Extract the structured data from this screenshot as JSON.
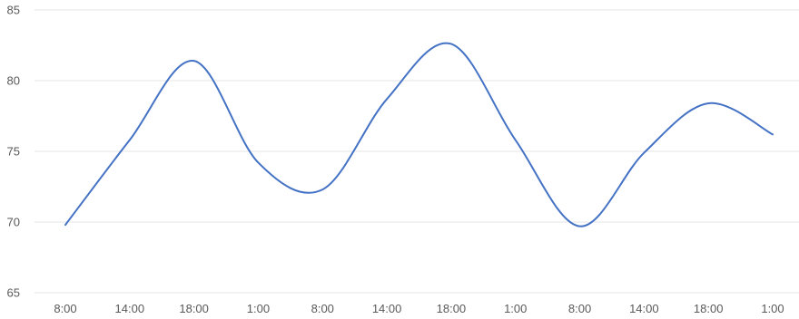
{
  "chart_data": {
    "type": "line",
    "title": "",
    "xlabel": "",
    "ylabel": "",
    "categories": [
      "8:00",
      "14:00",
      "18:00",
      "1:00",
      "8:00",
      "14:00",
      "18:00",
      "1:00",
      "8:00",
      "14:00",
      "18:00",
      "1:00"
    ],
    "series": [
      {
        "values": [
          69.8,
          75.8,
          81.4,
          74.2,
          72.3,
          78.7,
          82.6,
          75.8,
          69.7,
          74.9,
          78.4,
          76.2
        ]
      }
    ],
    "ylim": [
      65,
      85
    ],
    "yticks": [
      65,
      70,
      75,
      80,
      85
    ],
    "grid": true,
    "smooth": true,
    "colors": {
      "series": "#4472c4",
      "grid": "#e6e6e6",
      "text": "#595959"
    }
  }
}
